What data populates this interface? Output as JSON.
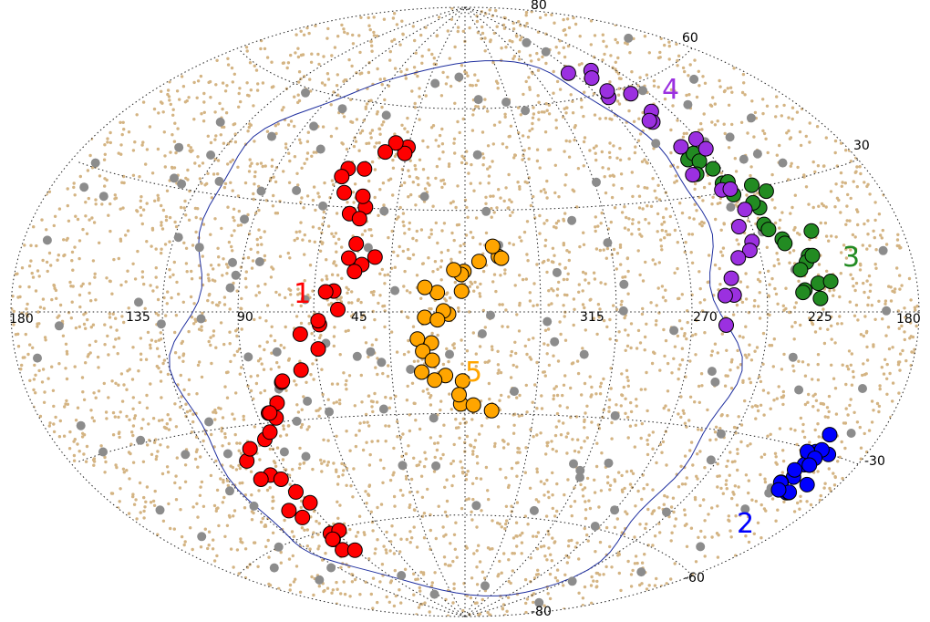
{
  "chart_data": {
    "type": "scatter",
    "projection": "aitoff",
    "grid": true,
    "longitude_labels": [
      "180",
      "135",
      "90",
      "45",
      "315",
      "270",
      "225",
      "180"
    ],
    "latitude_labels": [
      "80",
      "60",
      "30",
      "-30",
      "-60",
      "-80"
    ],
    "background_points": {
      "name": "",
      "color": "#d4b483",
      "count": 5200
    },
    "colors": {
      "background": "#d4b483",
      "gray": "#8c8c8c",
      "group_1": "#ff0000",
      "group_2": "#0000ff",
      "group_3": "#228b22",
      "group_4": "#9b30e0",
      "group_5": "#ffa500",
      "boundary": "#1f2f9f"
    },
    "groups": [
      {
        "label": "1",
        "color": "#ff0000"
      },
      {
        "label": "2",
        "color": "#0000ff"
      },
      {
        "label": "3",
        "color": "#228b22"
      },
      {
        "label": "4",
        "color": "#9b30e0"
      },
      {
        "label": "5",
        "color": "#ffa500"
      }
    ]
  }
}
